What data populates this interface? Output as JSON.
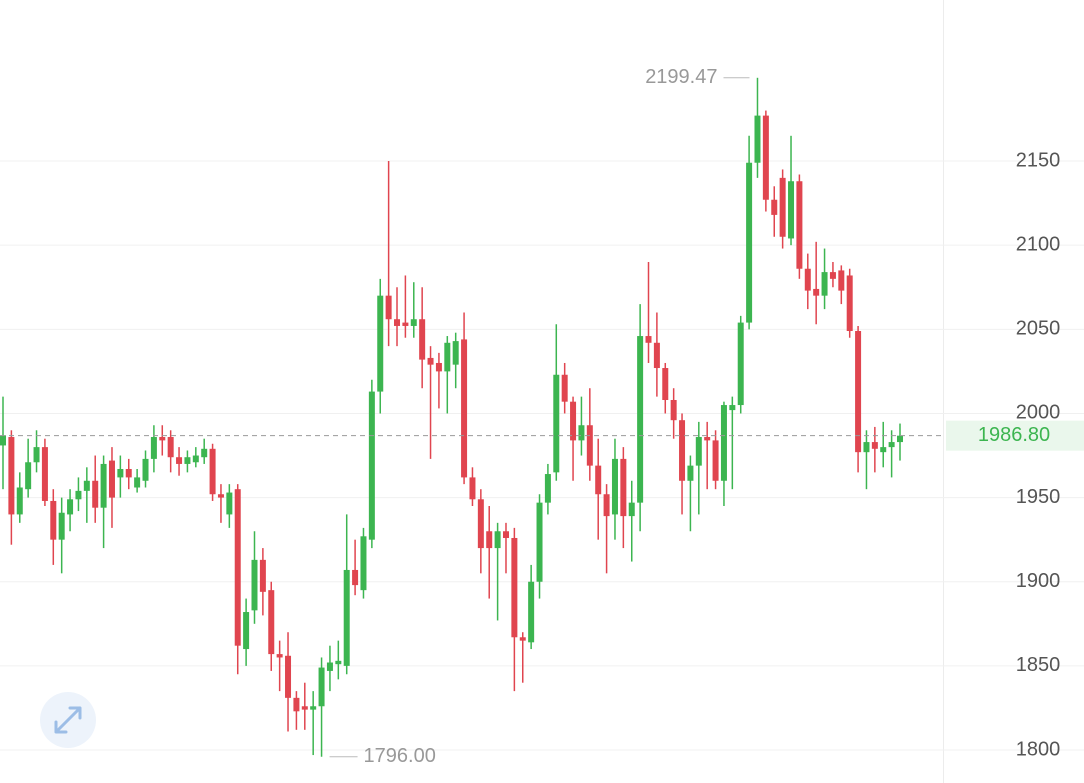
{
  "chart_data": {
    "type": "candlestick",
    "up_color": "#3cb550",
    "down_color": "#e0454f",
    "ylim": [
      1780.4,
      2245.7
    ],
    "yticks": [
      1800,
      1850,
      1900,
      1950,
      2000,
      2050,
      2100,
      2150
    ],
    "grid": true,
    "open": [
      1981,
      1986,
      1940,
      1955,
      1971,
      1980,
      1948,
      1925,
      1940,
      1949,
      1954,
      1960,
      1944,
      1972,
      1962,
      1967,
      1956,
      1960,
      1973,
      1986,
      1986,
      1974,
      1970,
      1971,
      1974,
      1979,
      1952,
      1940,
      1955,
      1860,
      1883,
      1913,
      1895,
      1857,
      1856,
      1831,
      1826,
      1824,
      1826,
      1847,
      1851,
      1850,
      1907,
      1895,
      1925,
      2013,
      2070,
      2056,
      2054,
      2052,
      2056,
      2033,
      2030,
      2025,
      2029,
      2044,
      1962,
      1949,
      1930,
      1920,
      1930,
      1926,
      1867,
      1864,
      1900,
      1947,
      1965,
      2023,
      2007,
      1984,
      1993,
      1969,
      1952,
      1940,
      1973,
      1939,
      1947,
      2046,
      2042,
      2027,
      2008,
      1996,
      1960,
      1969,
      1986,
      1984,
      1960,
      2002,
      2005,
      2054,
      2149,
      2177,
      2127,
      2140,
      2104,
      2138,
      2086,
      2074,
      2070,
      2084,
      2085,
      2082,
      2049,
      1977,
      1983,
      1977,
      1980,
      1983
    ],
    "high": [
      2010,
      1990,
      1965,
      1985,
      1990,
      1985,
      1955,
      1950,
      1955,
      1962,
      1968,
      1975,
      1975,
      1980,
      1975,
      1973,
      1967,
      1978,
      1993,
      1993,
      1990,
      1980,
      1978,
      1980,
      1985,
      1982,
      1958,
      1958,
      1958,
      1890,
      1930,
      1920,
      1900,
      1865,
      1870,
      1835,
      1840,
      1835,
      1855,
      1862,
      1865,
      1940,
      1925,
      1932,
      2020,
      2080,
      2150,
      2075,
      2082,
      2078,
      2075,
      2040,
      2036,
      2046,
      2048,
      2060,
      1968,
      1955,
      1945,
      1935,
      1935,
      1932,
      1870,
      1910,
      1952,
      1970,
      2053,
      2030,
      2010,
      2010,
      2015,
      1985,
      1958,
      1985,
      1980,
      1960,
      2065,
      2090,
      2060,
      2030,
      2015,
      2000,
      1975,
      1995,
      1995,
      1990,
      2007,
      2010,
      2058,
      2165,
      2199.47,
      2180,
      2135,
      2145,
      2165,
      2142,
      2095,
      2102,
      2098,
      2090,
      2088,
      2086,
      2052,
      1990,
      1992,
      1995,
      1990,
      1994
    ],
    "low": [
      1955,
      1922,
      1935,
      1950,
      1965,
      1945,
      1910,
      1905,
      1930,
      1942,
      1935,
      1935,
      1920,
      1932,
      1950,
      1955,
      1953,
      1956,
      1965,
      1975,
      1965,
      1963,
      1965,
      1968,
      1970,
      1948,
      1935,
      1932,
      1845,
      1850,
      1875,
      1880,
      1847,
      1835,
      1811,
      1812,
      1812,
      1797,
      1796,
      1835,
      1842,
      1845,
      1892,
      1890,
      1920,
      2000,
      2040,
      2040,
      2045,
      2045,
      2015,
      1973,
      2003,
      2000,
      2015,
      1958,
      1945,
      1905,
      1890,
      1877,
      1905,
      1835,
      1840,
      1860,
      1890,
      1940,
      1960,
      2000,
      1960,
      1975,
      1960,
      1925,
      1905,
      1925,
      1920,
      1912,
      1930,
      2030,
      2010,
      2000,
      1985,
      1940,
      1930,
      1940,
      1955,
      1955,
      1945,
      1955,
      2000,
      2050,
      2140,
      2120,
      2105,
      2098,
      2100,
      2080,
      2062,
      2053,
      2062,
      2075,
      2065,
      2045,
      1965,
      1955,
      1965,
      1968,
      1962,
      1972
    ],
    "close": [
      1987,
      1940,
      1956,
      1971,
      1980,
      1948,
      1925,
      1941,
      1949,
      1954,
      1960,
      1944,
      1970,
      1950,
      1967,
      1962,
      1962,
      1973,
      1986,
      1984,
      1974,
      1970,
      1974,
      1975,
      1979,
      1952,
      1950,
      1953,
      1862,
      1882,
      1913,
      1894,
      1857,
      1855,
      1831,
      1823,
      1824,
      1826,
      1849,
      1852,
      1853,
      1907,
      1898,
      1927,
      2013,
      2070,
      2056,
      2052,
      2052,
      2056,
      2032,
      2029,
      2025,
      2042,
      2043,
      1962,
      1949,
      1920,
      1920,
      1930,
      1926,
      1867,
      1865,
      1900,
      1947,
      1964,
      2023,
      2007,
      1984,
      1993,
      1969,
      1952,
      1939,
      1973,
      1939,
      1947,
      2046,
      2042,
      2027,
      2008,
      1996,
      1960,
      1969,
      1986,
      1984,
      1960,
      2005,
      2005,
      2054,
      2149,
      2177,
      2127,
      2118,
      2105,
      2138,
      2086,
      2073,
      2070,
      2084,
      2080,
      2073,
      2049,
      1977,
      1983,
      1979,
      1980,
      1983,
      1986.8
    ],
    "max_label": {
      "value": 2199.47,
      "label": "2199.47"
    },
    "min_label": {
      "value": 1796,
      "label": "1796.00"
    },
    "last_price": {
      "value": 1986.8,
      "label": "1986.80"
    }
  }
}
